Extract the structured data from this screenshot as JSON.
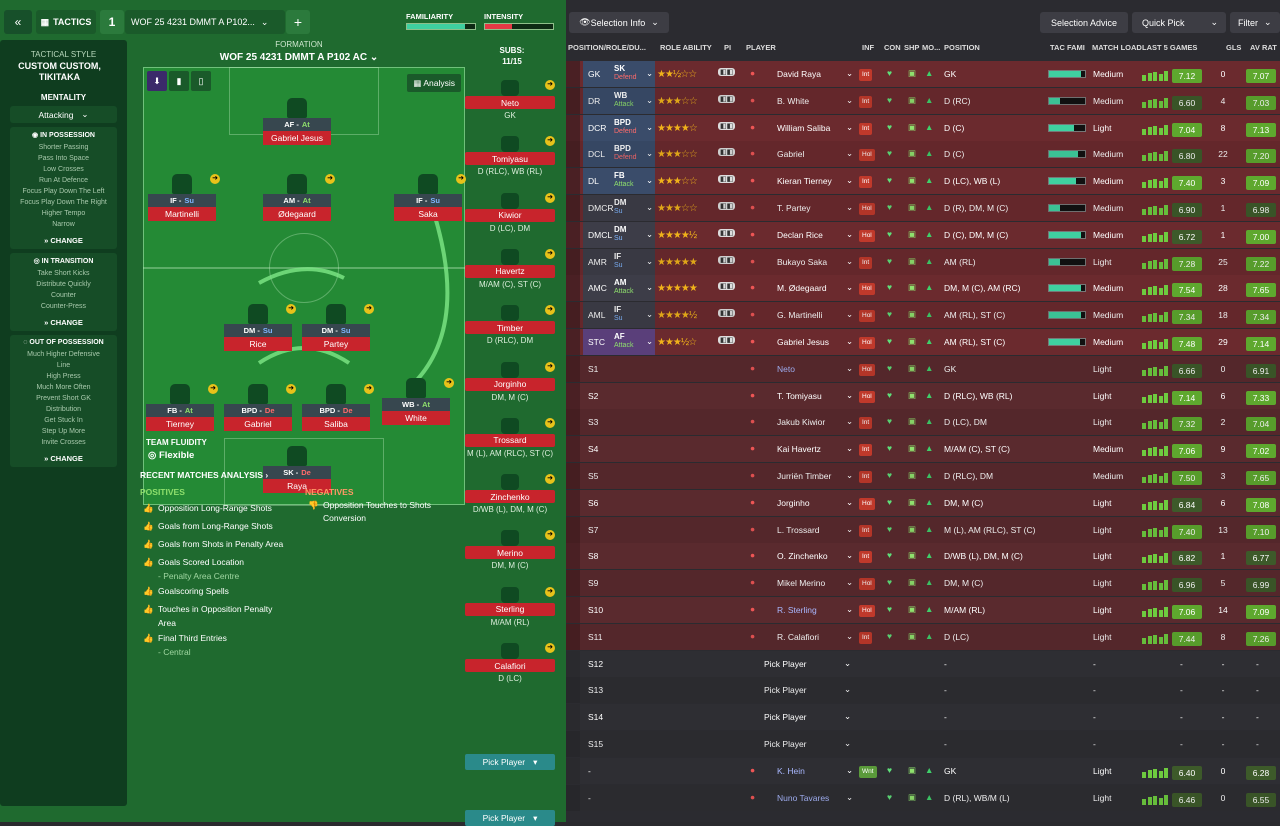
{
  "topbar": {
    "tactics_label": "TACTICS",
    "slot": "1",
    "tactic_name": "WOF 25  4231  DMMT A P102...",
    "familiarity": "FAMILIARITY",
    "intensity": "INTENSITY",
    "familiarity_level": 0.85,
    "intensity_level": 0.4
  },
  "sidebar": {
    "style_title": "TACTICAL STYLE",
    "style_name": "CUSTOM CUSTOM, TIKITAKA",
    "mentality_title": "MENTALITY",
    "mentality": "Attacking",
    "in_possession": {
      "title": "IN POSSESSION",
      "items": [
        "Shorter Passing",
        "Pass Into Space",
        "Low Crosses",
        "Run At Defence",
        "Focus Play Down The Left",
        "Focus Play Down The Right",
        "Higher Tempo",
        "Narrow"
      ],
      "change": "CHANGE"
    },
    "in_transition": {
      "title": "IN TRANSITION",
      "items": [
        "Take Short Kicks",
        "Distribute Quickly",
        "Counter",
        "Counter-Press"
      ],
      "change": "CHANGE"
    },
    "out_of_possession": {
      "title": "OUT OF POSSESSION",
      "items": [
        "Much Higher Defensive",
        "Line",
        "High Press",
        "Much More Often",
        "Prevent Short GK",
        "Distribution",
        "Get Stuck In",
        "Step Up More",
        "Invite Crosses"
      ],
      "change": "CHANGE"
    }
  },
  "formation": {
    "label": "FORMATION",
    "name": "WOF 25  4231  DMMT A P102 AC",
    "analysis": "Analysis",
    "subs_label": "SUBS:",
    "subs_count": "11/15",
    "fluidity_label": "TEAM FLUIDITY",
    "fluidity": "Flexible"
  },
  "players": [
    {
      "role": "AF -",
      "duty": "At",
      "name": "Gabriel Jesus"
    },
    {
      "role": "IF -",
      "duty": "Su",
      "name": "Martinelli"
    },
    {
      "role": "AM -",
      "duty": "At",
      "name": "Ødegaard"
    },
    {
      "role": "IF -",
      "duty": "Su",
      "name": "Saka"
    },
    {
      "role": "DM -",
      "duty": "Su",
      "name": "Rice"
    },
    {
      "role": "DM -",
      "duty": "Su",
      "name": "Partey"
    },
    {
      "role": "FB -",
      "duty": "At",
      "name": "Tierney"
    },
    {
      "role": "BPD -",
      "duty": "De",
      "name": "Gabriel"
    },
    {
      "role": "BPD -",
      "duty": "De",
      "name": "Saliba"
    },
    {
      "role": "WB -",
      "duty": "At",
      "name": "White"
    },
    {
      "role": "SK -",
      "duty": "De",
      "name": "Raya"
    }
  ],
  "subs": [
    {
      "name": "Neto",
      "pos": "GK"
    },
    {
      "name": "Tomiyasu",
      "pos": "D (RLC), WB (RL)"
    },
    {
      "name": "Kiwior",
      "pos": "D (LC), DM"
    },
    {
      "name": "Havertz",
      "pos": "M/AM (C), ST (C)"
    },
    {
      "name": "Timber",
      "pos": "D (RLC), DM"
    },
    {
      "name": "Jorginho",
      "pos": "DM, M (C)"
    },
    {
      "name": "Trossard",
      "pos": "M (L), AM (RLC), ST (C)"
    },
    {
      "name": "Zinchenko",
      "pos": "D/WB (L), DM, M (C)"
    },
    {
      "name": "Merino",
      "pos": "DM, M (C)"
    },
    {
      "name": "Sterling",
      "pos": "M/AM (RL)"
    },
    {
      "name": "Calafiori",
      "pos": "D (LC)"
    }
  ],
  "pick_player": "Pick Player",
  "analysis": {
    "title": "RECENT MATCHES ANALYSIS",
    "positives_title": "POSITIVES",
    "positives": [
      "Opposition Long-Range Shots",
      "Goals from Long-Range Shots",
      "Goals from Shots in Penalty Area",
      "Goals Scored Location",
      "- Penalty Area Centre",
      "Goalscoring Spells",
      "Touches in Opposition Penalty",
      "Area",
      "Final Third Entries",
      "- Central"
    ],
    "negatives_title": "NEGATIVES",
    "negatives": [
      "Opposition Touches to Shots",
      "Conversion"
    ]
  },
  "right_top": {
    "selection_info": "Selection Info",
    "selection_advice": "Selection Advice",
    "quick_pick": "Quick Pick",
    "filter": "Filter"
  },
  "columns": [
    "POSITION/ROLE/DU...",
    "ROLE ABILITY",
    "PI",
    "PLAYER",
    "INF",
    "CON",
    "SHP",
    "MO...",
    "POSITION",
    "TAC FAMI",
    "MATCH LOAD",
    "LAST 5 GAMES",
    "GLS",
    "AV RAT"
  ],
  "rows": [
    {
      "slot": "GK",
      "role": "SK",
      "duty": "Defend",
      "stars": "★★½☆☆",
      "name": "David Raya",
      "inf": "Int",
      "pos": "GK",
      "load": "Medium",
      "last": "7.12",
      "gls": "0",
      "avr": "7.07",
      "fam": 0.9
    },
    {
      "slot": "DR",
      "role": "WB",
      "duty": "Attack",
      "stars": "★★★☆☆",
      "name": "B. White",
      "inf": "Int",
      "pos": "D (RC)",
      "load": "Medium",
      "last": "6.60",
      "gls": "4",
      "avr": "7.03",
      "fam": 0.3
    },
    {
      "slot": "DCR",
      "role": "BPD",
      "duty": "Defend",
      "stars": "★★★★☆",
      "name": "William Saliba",
      "inf": "Int",
      "pos": "D (C)",
      "load": "Light",
      "last": "7.04",
      "gls": "8",
      "avr": "7.13",
      "fam": 0.7
    },
    {
      "slot": "DCL",
      "role": "BPD",
      "duty": "Defend",
      "stars": "★★★☆☆",
      "name": "Gabriel",
      "inf": "Hol",
      "pos": "D (C)",
      "load": "Medium",
      "last": "6.80",
      "gls": "22",
      "avr": "7.20",
      "fam": 0.8
    },
    {
      "slot": "DL",
      "role": "FB",
      "duty": "Attack",
      "stars": "★★★☆☆",
      "name": "Kieran Tierney",
      "inf": "Int",
      "pos": "D (LC), WB (L)",
      "load": "Medium",
      "last": "7.40",
      "gls": "3",
      "avr": "7.09",
      "fam": 0.75
    },
    {
      "slot": "DMCR",
      "role": "DM",
      "duty": "Su",
      "stars": "★★★☆☆",
      "name": "T. Partey",
      "inf": "Hol",
      "pos": "D (R), DM, M (C)",
      "load": "Medium",
      "last": "6.90",
      "gls": "1",
      "avr": "6.98",
      "fam": 0.3
    },
    {
      "slot": "DMCL",
      "role": "DM",
      "duty": "Su",
      "stars": "★★★★½",
      "name": "Declan Rice",
      "inf": "Hol",
      "pos": "D (C), DM, M (C)",
      "load": "Medium",
      "last": "6.72",
      "gls": "1",
      "avr": "7.00",
      "fam": 0.9
    },
    {
      "slot": "AMR",
      "role": "IF",
      "duty": "Su",
      "stars": "★★★★★",
      "name": "Bukayo Saka",
      "inf": "Int",
      "pos": "AM (RL)",
      "load": "Light",
      "last": "7.28",
      "gls": "25",
      "avr": "7.22",
      "fam": 0.3
    },
    {
      "slot": "AMC",
      "role": "AM",
      "duty": "Attack",
      "stars": "★★★★★",
      "name": "M. Ødegaard",
      "inf": "Hol",
      "pos": "DM, M (C), AM (RC)",
      "load": "Medium",
      "last": "7.54",
      "gls": "28",
      "avr": "7.65",
      "fam": 0.9
    },
    {
      "slot": "AML",
      "role": "IF",
      "duty": "Su",
      "stars": "★★★★½",
      "name": "G. Martinelli",
      "inf": "Hol",
      "pos": "AM (RL), ST (C)",
      "load": "Medium",
      "last": "7.34",
      "gls": "18",
      "avr": "7.34",
      "fam": 0.9
    },
    {
      "slot": "STC",
      "role": "AF",
      "duty": "Attack",
      "stars": "★★★½☆",
      "name": "Gabriel Jesus",
      "inf": "Hol",
      "pos": "AM (RL), ST (C)",
      "load": "Medium",
      "last": "7.48",
      "gls": "29",
      "avr": "7.14",
      "fam": 0.85
    },
    {
      "slot": "S1",
      "name": "Neto",
      "inf": "Hol",
      "pos": "GK",
      "load": "Light",
      "last": "6.66",
      "gls": "0",
      "avr": "6.91"
    },
    {
      "slot": "S2",
      "name": "T. Tomiyasu",
      "inf": "Hol",
      "pos": "D (RLC), WB (RL)",
      "load": "Light",
      "last": "7.14",
      "gls": "6",
      "avr": "7.33"
    },
    {
      "slot": "S3",
      "name": "Jakub Kiwior",
      "inf": "Int",
      "pos": "D (LC), DM",
      "load": "Light",
      "last": "7.32",
      "gls": "2",
      "avr": "7.04"
    },
    {
      "slot": "S4",
      "name": "Kai Havertz",
      "inf": "Int",
      "pos": "M/AM (C), ST (C)",
      "load": "Medium",
      "last": "7.06",
      "gls": "9",
      "avr": "7.02"
    },
    {
      "slot": "S5",
      "name": "Jurriën Timber",
      "inf": "Int",
      "pos": "D (RLC), DM",
      "load": "Medium",
      "last": "7.50",
      "gls": "3",
      "avr": "7.65"
    },
    {
      "slot": "S6",
      "name": "Jorginho",
      "inf": "Hol",
      "pos": "DM, M (C)",
      "load": "Light",
      "last": "6.84",
      "gls": "6",
      "avr": "7.08"
    },
    {
      "slot": "S7",
      "name": "L. Trossard",
      "inf": "Int",
      "pos": "M (L), AM (RLC), ST (C)",
      "load": "Light",
      "last": "7.40",
      "gls": "13",
      "avr": "7.10"
    },
    {
      "slot": "S8",
      "name": "O. Zinchenko",
      "inf": "Int",
      "pos": "D/WB (L), DM, M (C)",
      "load": "Light",
      "last": "6.82",
      "gls": "1",
      "avr": "6.77"
    },
    {
      "slot": "S9",
      "name": "Mikel Merino",
      "inf": "Hol",
      "pos": "DM, M (C)",
      "load": "Light",
      "last": "6.96",
      "gls": "5",
      "avr": "6.99"
    },
    {
      "slot": "S10",
      "name": "R. Sterling",
      "inf": "Hol",
      "pos": "M/AM (RL)",
      "load": "Light",
      "last": "7.06",
      "gls": "14",
      "avr": "7.09"
    },
    {
      "slot": "S11",
      "name": "R. Calafiori",
      "inf": "Int",
      "pos": "D (LC)",
      "load": "Light",
      "last": "7.44",
      "gls": "8",
      "avr": "7.26"
    },
    {
      "slot": "S12",
      "name": "Pick Player",
      "pos": "-",
      "load": "-",
      "last": "-",
      "gls": "-",
      "avr": "-"
    },
    {
      "slot": "S13",
      "name": "Pick Player",
      "pos": "-",
      "load": "-",
      "last": "-",
      "gls": "-",
      "avr": "-"
    },
    {
      "slot": "S14",
      "name": "Pick Player",
      "pos": "-",
      "load": "-",
      "last": "-",
      "gls": "-",
      "avr": "-"
    },
    {
      "slot": "S15",
      "name": "Pick Player",
      "pos": "-",
      "load": "-",
      "last": "-",
      "gls": "-",
      "avr": "-"
    },
    {
      "slot": "-",
      "name": "K. Hein",
      "inf": "Wnt",
      "pos": "GK",
      "load": "Light",
      "last": "6.40",
      "gls": "0",
      "avr": "6.28"
    },
    {
      "slot": "-",
      "name": "Nuno Tavares",
      "pos": "D (RL), WB/M (L)",
      "load": "Light",
      "last": "6.46",
      "gls": "0",
      "avr": "6.55"
    }
  ],
  "colors": {
    "red": "#c8242c",
    "green": "#248a35",
    "rowRed": "#6b2a2e",
    "rowDark": "#3a2528"
  }
}
